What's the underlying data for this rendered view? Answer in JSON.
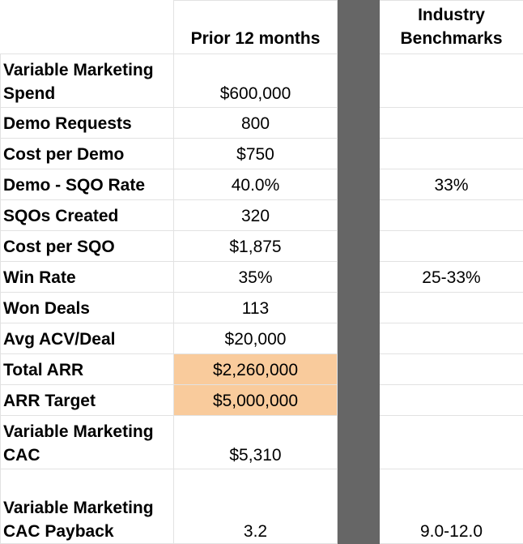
{
  "header": {
    "col1": "",
    "col2": "Prior 12 months",
    "col3": "Industry Benchmarks"
  },
  "rows": [
    {
      "label": "Variable Marketing Spend",
      "prior": "$600,000",
      "benchmark": ""
    },
    {
      "label": "Demo Requests",
      "prior": "800",
      "benchmark": ""
    },
    {
      "label": "Cost per Demo",
      "prior": "$750",
      "benchmark": ""
    },
    {
      "label": "Demo - SQO Rate",
      "prior": "40.0%",
      "benchmark": "33%"
    },
    {
      "label": "SQOs Created",
      "prior": "320",
      "benchmark": ""
    },
    {
      "label": "Cost per SQO",
      "prior": "$1,875",
      "benchmark": ""
    },
    {
      "label": "Win Rate",
      "prior": "35%",
      "benchmark": "25-33%"
    },
    {
      "label": "Won Deals",
      "prior": "113",
      "benchmark": ""
    },
    {
      "label": "Avg ACV/Deal",
      "prior": "$20,000",
      "benchmark": ""
    },
    {
      "label": "Total ARR",
      "prior": "$2,260,000",
      "benchmark": ""
    },
    {
      "label": "ARR Target",
      "prior": "$5,000,000",
      "benchmark": ""
    },
    {
      "label": "Variable Marketing CAC",
      "prior": "$5,310",
      "benchmark": ""
    },
    {
      "label": "Variable Marketing CAC Payback",
      "prior": "3.2",
      "benchmark": "9.0-12.0"
    }
  ],
  "colors": {
    "highlight": "#f9cb9c",
    "separator": "#666666",
    "gridline": "#e2e2e2"
  }
}
